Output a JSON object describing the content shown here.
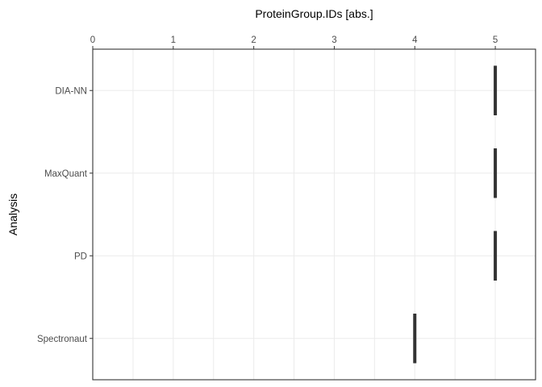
{
  "chart_data": {
    "type": "bar",
    "orientation": "horizontal",
    "title": "",
    "xlabel": "ProteinGroup.IDs  [abs.]",
    "ylabel": "Analysis",
    "x_axis_position": "top",
    "xlim": [
      0,
      5.5
    ],
    "x_ticks": [
      0,
      1,
      2,
      3,
      4,
      5
    ],
    "x_tick_labels": [
      "0",
      "1",
      "2",
      "3",
      "4",
      "5"
    ],
    "categories": [
      "DIA-NN",
      "MaxQuant",
      "PD",
      "Spectronaut"
    ],
    "values": [
      5,
      5,
      5,
      4
    ],
    "grid": true,
    "legend": "none",
    "colors": {
      "bar": "#333333",
      "grid": "#ebebeb",
      "panel_border": "#333333",
      "tick_text": "#4d4d4d",
      "axis_title": "#000000"
    }
  }
}
